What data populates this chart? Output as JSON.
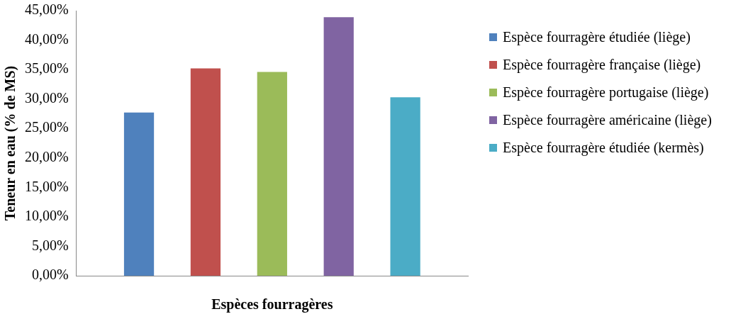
{
  "chart_data": {
    "type": "bar",
    "xlabel": "Espèces fourragères",
    "ylabel": "Teneur en eau (% de MS)",
    "categories": [
      null
    ],
    "series": [
      {
        "name": "Espèce fourragère étudiée (liège)",
        "color": "#4f81bd",
        "values": [
          27.7
        ]
      },
      {
        "name": "Espèce fourragère française (liège)",
        "color": "#c0504d",
        "values": [
          35.2
        ]
      },
      {
        "name": "Espèce fourragère portugaise (liège)",
        "color": "#9bbb59",
        "values": [
          34.6
        ]
      },
      {
        "name": "Espèce fourragère américaine (liège)",
        "color": "#8064a2",
        "values": [
          43.9
        ]
      },
      {
        "name": "Espèce fourragère étudiée (kermès)",
        "color": "#4bacc6",
        "values": [
          30.3
        ]
      }
    ],
    "ylim": [
      0,
      45
    ],
    "yticks": [
      {
        "value": 0,
        "label": "0,00%"
      },
      {
        "value": 5,
        "label": "5,00%"
      },
      {
        "value": 10,
        "label": "10,00%"
      },
      {
        "value": 15,
        "label": "15,00%"
      },
      {
        "value": 20,
        "label": "20,00%"
      },
      {
        "value": 25,
        "label": "25,00%"
      },
      {
        "value": 30,
        "label": "30,00%"
      },
      {
        "value": 35,
        "label": "35,00%"
      },
      {
        "value": 40,
        "label": "40,00%"
      },
      {
        "value": 45,
        "label": "45,00%"
      }
    ],
    "grid": false,
    "legend": "right"
  }
}
